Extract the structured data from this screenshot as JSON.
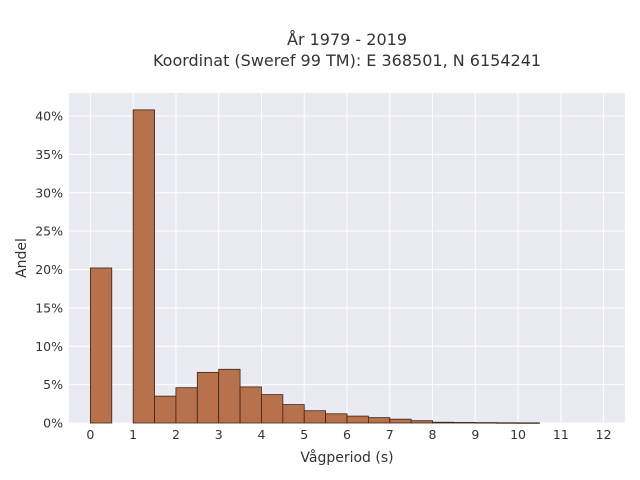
{
  "chart_data": {
    "type": "bar",
    "title_lines": [
      "År 1979 - 2019",
      "Koordinat (Sweref 99 TM): E 368501, N 6154241"
    ],
    "xlabel": "Vågperiod (s)",
    "ylabel": "Andel",
    "xlim": [
      -0.5,
      12.5
    ],
    "ylim": [
      0,
      0.43
    ],
    "x_ticks": [
      0,
      1,
      2,
      3,
      4,
      5,
      6,
      7,
      8,
      9,
      10,
      11,
      12
    ],
    "x_tick_labels": [
      "0",
      "1",
      "2",
      "3",
      "4",
      "5",
      "6",
      "7",
      "8",
      "9",
      "10",
      "11",
      "12"
    ],
    "y_ticks": [
      0,
      0.05,
      0.1,
      0.15,
      0.2,
      0.25,
      0.3,
      0.35,
      0.4
    ],
    "y_tick_labels": [
      "0%",
      "5%",
      "10%",
      "15%",
      "20%",
      "25%",
      "30%",
      "35%",
      "40%"
    ],
    "bin_width": 0.5,
    "bins": [
      {
        "x0": 0.0,
        "value": 0.202
      },
      {
        "x0": 1.0,
        "value": 0.408
      },
      {
        "x0": 1.5,
        "value": 0.035
      },
      {
        "x0": 2.0,
        "value": 0.046
      },
      {
        "x0": 2.5,
        "value": 0.066
      },
      {
        "x0": 3.0,
        "value": 0.07
      },
      {
        "x0": 3.5,
        "value": 0.047
      },
      {
        "x0": 4.0,
        "value": 0.037
      },
      {
        "x0": 4.5,
        "value": 0.024
      },
      {
        "x0": 5.0,
        "value": 0.016
      },
      {
        "x0": 5.5,
        "value": 0.012
      },
      {
        "x0": 6.0,
        "value": 0.009
      },
      {
        "x0": 6.5,
        "value": 0.007
      },
      {
        "x0": 7.0,
        "value": 0.005
      },
      {
        "x0": 7.5,
        "value": 0.003
      },
      {
        "x0": 8.0,
        "value": 0.001
      },
      {
        "x0": 8.5,
        "value": 0.0007
      },
      {
        "x0": 9.0,
        "value": 0.0005
      },
      {
        "x0": 9.5,
        "value": 0.0003
      },
      {
        "x0": 10.0,
        "value": 0.0002
      }
    ],
    "grid": true,
    "colors": {
      "bar_fill": "#b8714d",
      "bar_edge": "#3a2418",
      "plot_background": "#eaeaf2",
      "grid": "#ffffff"
    }
  }
}
